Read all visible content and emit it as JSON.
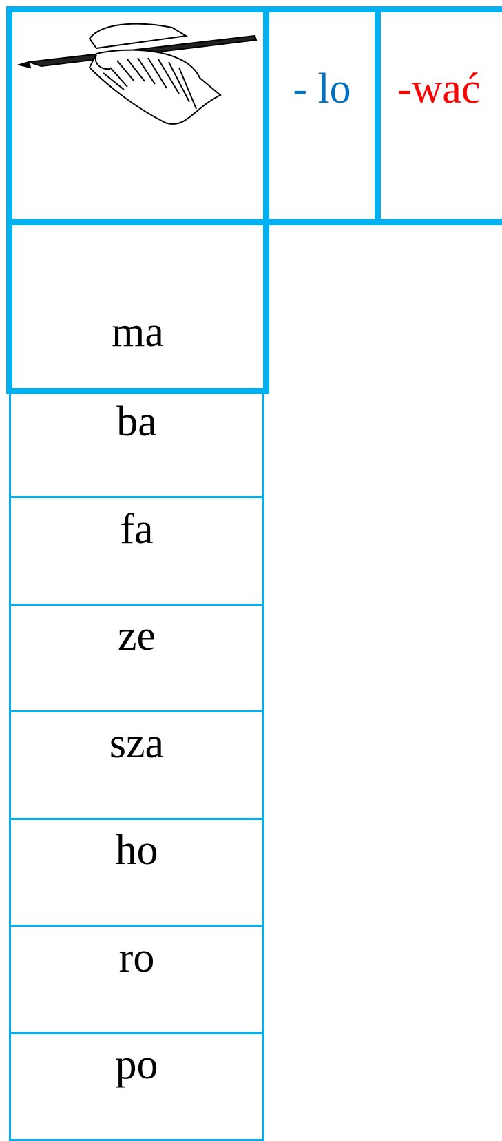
{
  "table": {
    "endings": [
      "- lo",
      "-wać"
    ],
    "syllables": [
      "ma",
      "ba",
      "fa",
      "ze",
      "sza",
      "ho",
      "ro",
      "po"
    ]
  }
}
